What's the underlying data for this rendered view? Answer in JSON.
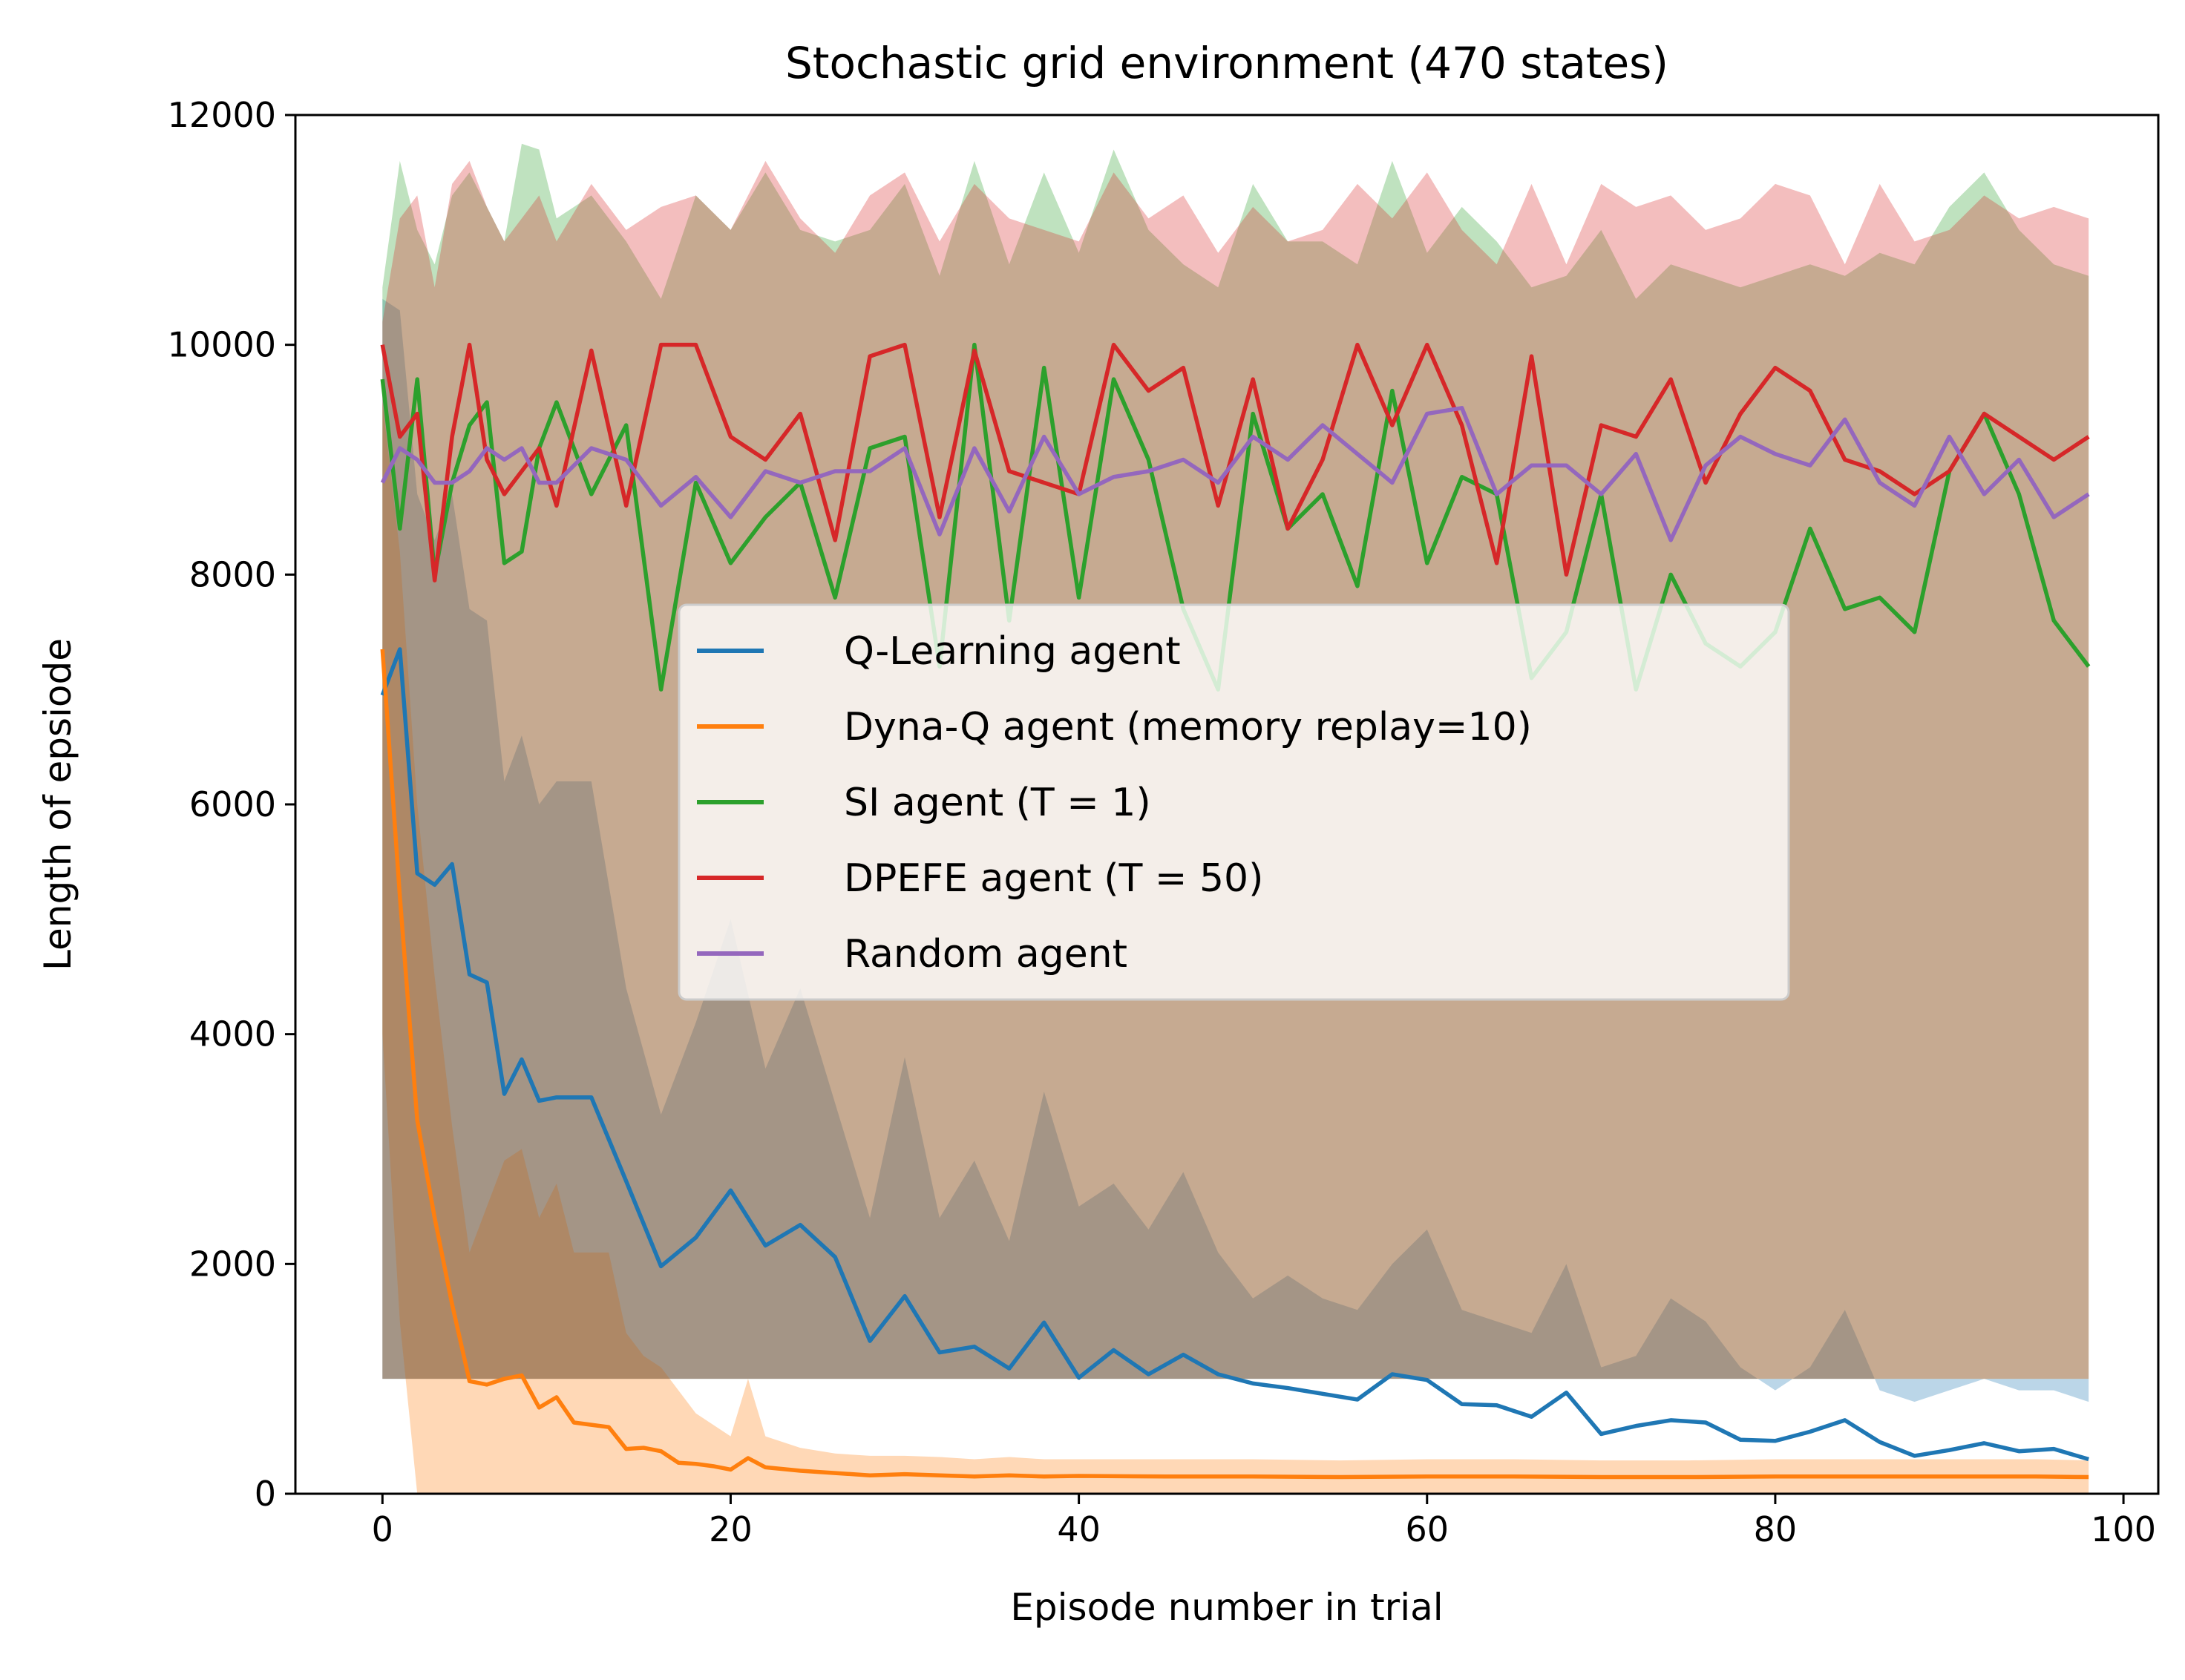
{
  "chart_data": {
    "type": "line",
    "title": "Stochastic grid environment (470 states)",
    "xlabel": "Episode number in trial",
    "ylabel": "Length of epsiode",
    "xlim": [
      -5,
      102
    ],
    "ylim": [
      0,
      12000
    ],
    "xticks": [
      0,
      20,
      40,
      60,
      80,
      100
    ],
    "yticks": [
      0,
      2000,
      4000,
      6000,
      8000,
      10000,
      12000
    ],
    "grid": false,
    "legend_position": "center",
    "colors": {
      "q_learning": "#1f77b4",
      "dyna_q": "#ff7f0e",
      "si": "#2ca02c",
      "dpefe": "#d62728",
      "random": "#9467bd"
    },
    "series": [
      {
        "key": "q_learning",
        "name": "Q-Learning agent",
        "x": [
          0,
          1,
          2,
          3,
          4,
          5,
          6,
          7,
          8,
          9,
          10,
          12,
          14,
          16,
          18,
          20,
          22,
          24,
          26,
          28,
          30,
          32,
          34,
          36,
          38,
          40,
          42,
          44,
          46,
          48,
          50,
          52,
          54,
          56,
          58,
          60,
          62,
          64,
          66,
          68,
          70,
          72,
          74,
          76,
          78,
          80,
          82,
          84,
          86,
          88,
          90,
          92,
          94,
          96,
          98
        ],
        "y": [
          6950,
          7350,
          5400,
          5300,
          5480,
          4520,
          4450,
          3480,
          3780,
          3420,
          3450,
          3450,
          2720,
          1980,
          2230,
          2640,
          2160,
          2340,
          2060,
          1330,
          1720,
          1230,
          1280,
          1090,
          1490,
          1010,
          1250,
          1040,
          1210,
          1040,
          960,
          920,
          870,
          820,
          1040,
          990,
          780,
          770,
          670,
          880,
          520,
          590,
          640,
          620,
          470,
          460,
          540,
          640,
          450,
          330,
          380,
          440,
          370,
          390,
          300
        ],
        "band_lower": [
          1000,
          1000,
          1000,
          1000,
          1000,
          1000,
          1000,
          1000,
          1000,
          1000,
          1000,
          1000,
          1000,
          1000,
          1000,
          1000,
          1000,
          1000,
          1000,
          1000,
          1000,
          1000,
          1000,
          1000,
          1000,
          1000,
          1000,
          1000,
          1000,
          1000,
          1000,
          1000,
          1000,
          1000,
          1000,
          1000,
          1000,
          1000,
          1000,
          1000,
          1000,
          1000,
          1000,
          1000,
          1000,
          1000,
          1000,
          1000,
          1000,
          1000,
          1000,
          1000,
          1000,
          1000,
          1000
        ],
        "band_upper": [
          10400,
          10300,
          8700,
          8300,
          8700,
          7700,
          7600,
          6200,
          6600,
          6000,
          6200,
          6200,
          4400,
          3300,
          4100,
          5000,
          3700,
          4400,
          3400,
          2400,
          3800,
          2400,
          2900,
          2200,
          3500,
          2500,
          2700,
          2300,
          2800,
          2100,
          1700,
          1900,
          1700,
          1600,
          2000,
          2300,
          1600,
          1500,
          1400,
          2000,
          1100,
          1200,
          1700,
          1500,
          1100,
          900,
          1100,
          1600,
          900,
          800,
          900,
          1000,
          900,
          900,
          800
        ]
      },
      {
        "key": "dyna_q",
        "name": "Dyna-Q agent (memory replay=10)",
        "x": [
          0,
          1,
          2,
          3,
          4,
          5,
          6,
          7,
          8,
          9,
          10,
          11,
          12,
          13,
          14,
          15,
          16,
          17,
          18,
          19,
          20,
          21,
          22,
          24,
          26,
          28,
          30,
          32,
          34,
          36,
          38,
          40,
          45,
          50,
          55,
          60,
          65,
          70,
          75,
          80,
          85,
          90,
          95,
          98
        ],
        "y": [
          7350,
          5200,
          3250,
          2400,
          1650,
          980,
          950,
          1000,
          1030,
          750,
          840,
          620,
          600,
          580,
          390,
          400,
          370,
          270,
          260,
          240,
          210,
          310,
          230,
          200,
          180,
          160,
          170,
          160,
          150,
          160,
          150,
          155,
          150,
          150,
          145,
          150,
          150,
          145,
          145,
          150,
          150,
          150,
          150,
          145
        ],
        "band_lower": [
          4000,
          1500,
          0,
          0,
          0,
          0,
          0,
          0,
          0,
          0,
          0,
          0,
          0,
          0,
          0,
          0,
          0,
          0,
          0,
          0,
          0,
          0,
          0,
          0,
          0,
          0,
          0,
          0,
          0,
          0,
          0,
          0,
          0,
          0,
          0,
          0,
          0,
          0,
          0,
          0,
          0,
          0,
          0,
          0
        ],
        "band_upper": [
          9500,
          8200,
          6000,
          4500,
          3200,
          2100,
          2500,
          2900,
          3000,
          2400,
          2700,
          2100,
          2100,
          2100,
          1400,
          1200,
          1100,
          900,
          700,
          600,
          500,
          1000,
          500,
          400,
          350,
          330,
          330,
          320,
          300,
          320,
          300,
          300,
          300,
          300,
          290,
          300,
          300,
          290,
          290,
          300,
          300,
          300,
          300,
          290
        ]
      },
      {
        "key": "si",
        "name": "SI agent (T = 1)",
        "x": [
          0,
          1,
          2,
          3,
          4,
          5,
          6,
          7,
          8,
          9,
          10,
          12,
          14,
          16,
          18,
          20,
          22,
          24,
          26,
          28,
          30,
          32,
          34,
          36,
          38,
          40,
          42,
          44,
          46,
          48,
          50,
          52,
          54,
          56,
          58,
          60,
          62,
          64,
          66,
          68,
          70,
          72,
          74,
          76,
          78,
          80,
          82,
          84,
          86,
          88,
          90,
          92,
          94,
          96,
          98
        ],
        "y": [
          9700,
          8400,
          9700,
          8000,
          8800,
          9300,
          9500,
          8100,
          8200,
          9100,
          9500,
          8700,
          9300,
          7000,
          8800,
          8100,
          8500,
          8800,
          7800,
          9100,
          9200,
          7200,
          10000,
          7600,
          9800,
          7800,
          9700,
          9000,
          7700,
          7000,
          9400,
          8400,
          8700,
          7900,
          9600,
          8100,
          8850,
          8700,
          7100,
          7500,
          8700,
          7000,
          8000,
          7400,
          7200,
          7500,
          8400,
          7700,
          7800,
          7500,
          8900,
          9400,
          8700,
          7600,
          7200
        ],
        "band_lower": [
          1000,
          1000,
          1000,
          1000,
          1000,
          1000,
          1000,
          1000,
          1000,
          1000,
          1000,
          1000,
          1000,
          1000,
          1000,
          1000,
          1000,
          1000,
          1000,
          1000,
          1000,
          1000,
          1000,
          1000,
          1000,
          1000,
          1000,
          1000,
          1000,
          1000,
          1000,
          1000,
          1000,
          1000,
          1000,
          1000,
          1000,
          1000,
          1000,
          1000,
          1000,
          1000,
          1000,
          1000,
          1000,
          1000,
          1000,
          1000,
          1000,
          1000,
          1000,
          1000,
          1000,
          1000,
          1000
        ],
        "band_upper": [
          10500,
          11600,
          11000,
          10700,
          11300,
          11500,
          11200,
          10900,
          11750,
          11700,
          11100,
          11300,
          10900,
          10400,
          11300,
          11000,
          11500,
          11000,
          10900,
          11000,
          11400,
          10600,
          11600,
          10700,
          11500,
          10800,
          11700,
          11000,
          10700,
          10500,
          11400,
          10900,
          10900,
          10700,
          11600,
          10800,
          11200,
          10900,
          10500,
          10600,
          11000,
          10400,
          10700,
          10600,
          10500,
          10600,
          10700,
          10600,
          10800,
          10700,
          11200,
          11500,
          11000,
          10700,
          10600
        ]
      },
      {
        "key": "dpefe",
        "name": "DPEFE agent (T = 50)",
        "x": [
          0,
          1,
          2,
          3,
          4,
          5,
          6,
          7,
          8,
          9,
          10,
          12,
          14,
          16,
          18,
          20,
          22,
          24,
          26,
          28,
          30,
          32,
          34,
          36,
          38,
          40,
          42,
          44,
          46,
          48,
          50,
          52,
          54,
          56,
          58,
          60,
          62,
          64,
          66,
          68,
          70,
          72,
          74,
          76,
          78,
          80,
          82,
          84,
          86,
          88,
          90,
          92,
          94,
          96,
          98
        ],
        "y": [
          10000,
          9200,
          9400,
          7950,
          9200,
          10000,
          9000,
          8700,
          8900,
          9100,
          8600,
          9950,
          8600,
          10000,
          10000,
          9200,
          9000,
          9400,
          8300,
          9900,
          10000,
          8500,
          9950,
          8900,
          8800,
          8700,
          10000,
          9600,
          9800,
          8600,
          9700,
          8400,
          9000,
          10000,
          9300,
          10000,
          9300,
          8100,
          9900,
          8000,
          9300,
          9200,
          9700,
          8800,
          9400,
          9800,
          9600,
          9000,
          8900,
          8700,
          8900,
          9400,
          9200,
          9000,
          9200
        ],
        "band_lower": [
          1000,
          1000,
          1000,
          1000,
          1000,
          1000,
          1000,
          1000,
          1000,
          1000,
          1000,
          1000,
          1000,
          1000,
          1000,
          1000,
          1000,
          1000,
          1000,
          1000,
          1000,
          1000,
          1000,
          1000,
          1000,
          1000,
          1000,
          1000,
          1000,
          1000,
          1000,
          1000,
          1000,
          1000,
          1000,
          1000,
          1000,
          1000,
          1000,
          1000,
          1000,
          1000,
          1000,
          1000,
          1000,
          1000,
          1000,
          1000,
          1000,
          1000,
          1000,
          1000,
          1000,
          1000,
          1000
        ],
        "band_upper": [
          10200,
          11100,
          11300,
          10500,
          11400,
          11600,
          11200,
          10900,
          11100,
          11300,
          10900,
          11400,
          11000,
          11200,
          11300,
          11000,
          11600,
          11100,
          10800,
          11300,
          11500,
          10900,
          11400,
          11100,
          11000,
          10900,
          11500,
          11100,
          11300,
          10800,
          11200,
          10900,
          11000,
          11400,
          11100,
          11500,
          11000,
          10700,
          11400,
          10700,
          11400,
          11200,
          11300,
          11000,
          11100,
          11400,
          11300,
          10700,
          11400,
          10900,
          11000,
          11300,
          11100,
          11200,
          11100
        ]
      },
      {
        "key": "random",
        "name": "Random agent",
        "x": [
          0,
          1,
          2,
          3,
          4,
          5,
          6,
          7,
          8,
          9,
          10,
          12,
          14,
          16,
          18,
          20,
          22,
          24,
          26,
          28,
          30,
          32,
          34,
          36,
          38,
          40,
          42,
          44,
          46,
          48,
          50,
          52,
          54,
          56,
          58,
          60,
          62,
          64,
          66,
          68,
          70,
          72,
          74,
          76,
          78,
          80,
          82,
          84,
          86,
          88,
          90,
          92,
          94,
          96,
          98
        ],
        "y": [
          8800,
          9100,
          9000,
          8800,
          8800,
          8900,
          9100,
          9000,
          9100,
          8800,
          8800,
          9100,
          9000,
          8600,
          8850,
          8500,
          8900,
          8800,
          8900,
          8900,
          9100,
          8350,
          9100,
          8550,
          9200,
          8700,
          8850,
          8900,
          9000,
          8800,
          9200,
          9000,
          9300,
          9050,
          8800,
          9400,
          9450,
          8700,
          8950,
          8950,
          8700,
          9050,
          8300,
          8950,
          9200,
          9050,
          8950,
          9350,
          8800,
          8600,
          9200,
          8700,
          9000,
          8500,
          8700
        ],
        "band_lower": [],
        "band_upper": []
      }
    ]
  },
  "legend": {
    "items": [
      {
        "label": "Q-Learning agent",
        "color": "#1f77b4"
      },
      {
        "label": "Dyna-Q agent (memory replay=10)",
        "color": "#ff7f0e"
      },
      {
        "label": "SI agent (T = 1)",
        "color": "#2ca02c"
      },
      {
        "label": "DPEFE agent (T = 50)",
        "color": "#d62728"
      },
      {
        "label": "Random agent",
        "color": "#9467bd"
      }
    ]
  }
}
